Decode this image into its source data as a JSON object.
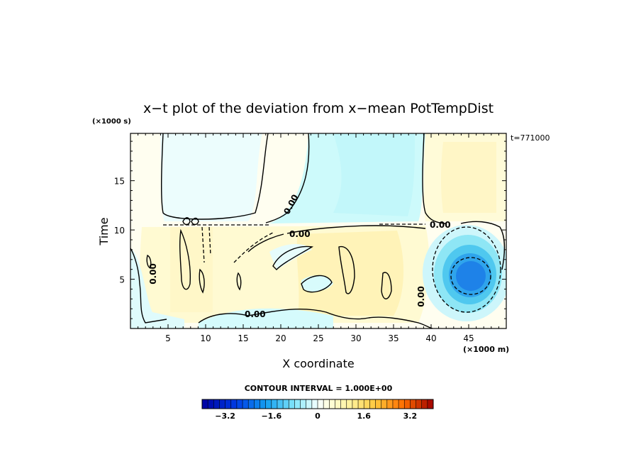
{
  "chart_data": {
    "type": "heatmap",
    "title": "x−t plot of the deviation from x−mean PotTempDist",
    "xlabel": "X coordinate",
    "ylabel": "Time",
    "x_unit": "(×1000 m)",
    "y_unit": "(×1000 s)",
    "time_stamp": "t=771000",
    "xlim": [
      0,
      50
    ],
    "ylim": [
      0,
      19.8
    ],
    "x_ticks": [
      5,
      10,
      15,
      20,
      25,
      30,
      35,
      40,
      45
    ],
    "y_ticks": [
      5,
      10,
      15
    ],
    "x_tick_labels": [
      "5",
      "10",
      "15",
      "20",
      "25",
      "30",
      "35",
      "40",
      "45"
    ],
    "y_tick_labels": [
      "5",
      "10",
      "15"
    ],
    "contour_interval_text": "CONTOUR INTERVAL = 1.000E+00",
    "colorbar": {
      "range": [
        -4,
        4
      ],
      "n_levels": 40,
      "tick_values": [
        -3.2,
        -1.6,
        0,
        1.6,
        3.2
      ],
      "tick_labels": [
        "−3.2",
        "−1.6",
        "0",
        "1.6",
        "3.2"
      ]
    },
    "contour_labels": [
      {
        "text": "0.00",
        "x": 2.8,
        "y": 5.3
      },
      {
        "text": "0.00",
        "x": 21.5,
        "y": 14.5
      },
      {
        "text": "0.00",
        "x": 22.5,
        "y": 9.6
      },
      {
        "text": "0.00",
        "x": 16.5,
        "y": 1.5
      },
      {
        "text": "0.00",
        "x": 40.0,
        "y": 3.5
      },
      {
        "text": "0.00",
        "x": 41.5,
        "y": 10.4
      }
    ],
    "features": [
      {
        "kind": "warm-region",
        "x_range": [
          3,
          40
        ],
        "y_range": [
          0.5,
          10.8
        ],
        "peak": 0.6
      },
      {
        "kind": "cool-region",
        "x_range": [
          4,
          17
        ],
        "y_range": [
          11,
          19.8
        ],
        "peak": -0.3
      },
      {
        "kind": "cool-region",
        "x_range": [
          24,
          38
        ],
        "y_range": [
          11,
          19.8
        ],
        "peak": -0.4
      },
      {
        "kind": "warm-region",
        "x_range": [
          40,
          50
        ],
        "y_range": [
          11,
          19.8
        ],
        "peak": 0.4
      },
      {
        "kind": "cold-core",
        "center": [
          44.8,
          5.5
        ],
        "radius_x": [
          4,
          8
        ],
        "radius_y": [
          2.5,
          5
        ],
        "peak": -2.8
      }
    ]
  }
}
